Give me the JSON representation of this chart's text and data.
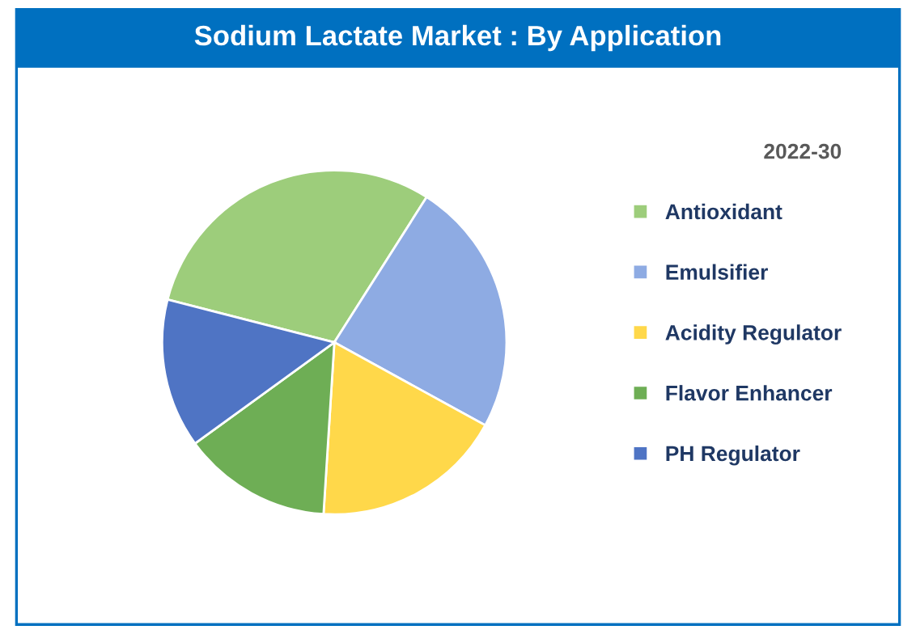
{
  "chart_data": {
    "type": "pie",
    "title": "Sodium Lactate Market : By Application",
    "legend_title": "2022-30",
    "categories": [
      "Antioxidant",
      "Emulsifier",
      "Acidity Regulator",
      "Flavor Enhancer",
      "PH Regulator"
    ],
    "values": [
      30,
      24,
      18,
      14,
      14
    ],
    "colors": [
      "#9dcd7b",
      "#8eabe3",
      "#ffd84a",
      "#6eae55",
      "#4f74c4"
    ],
    "legend": "right"
  }
}
